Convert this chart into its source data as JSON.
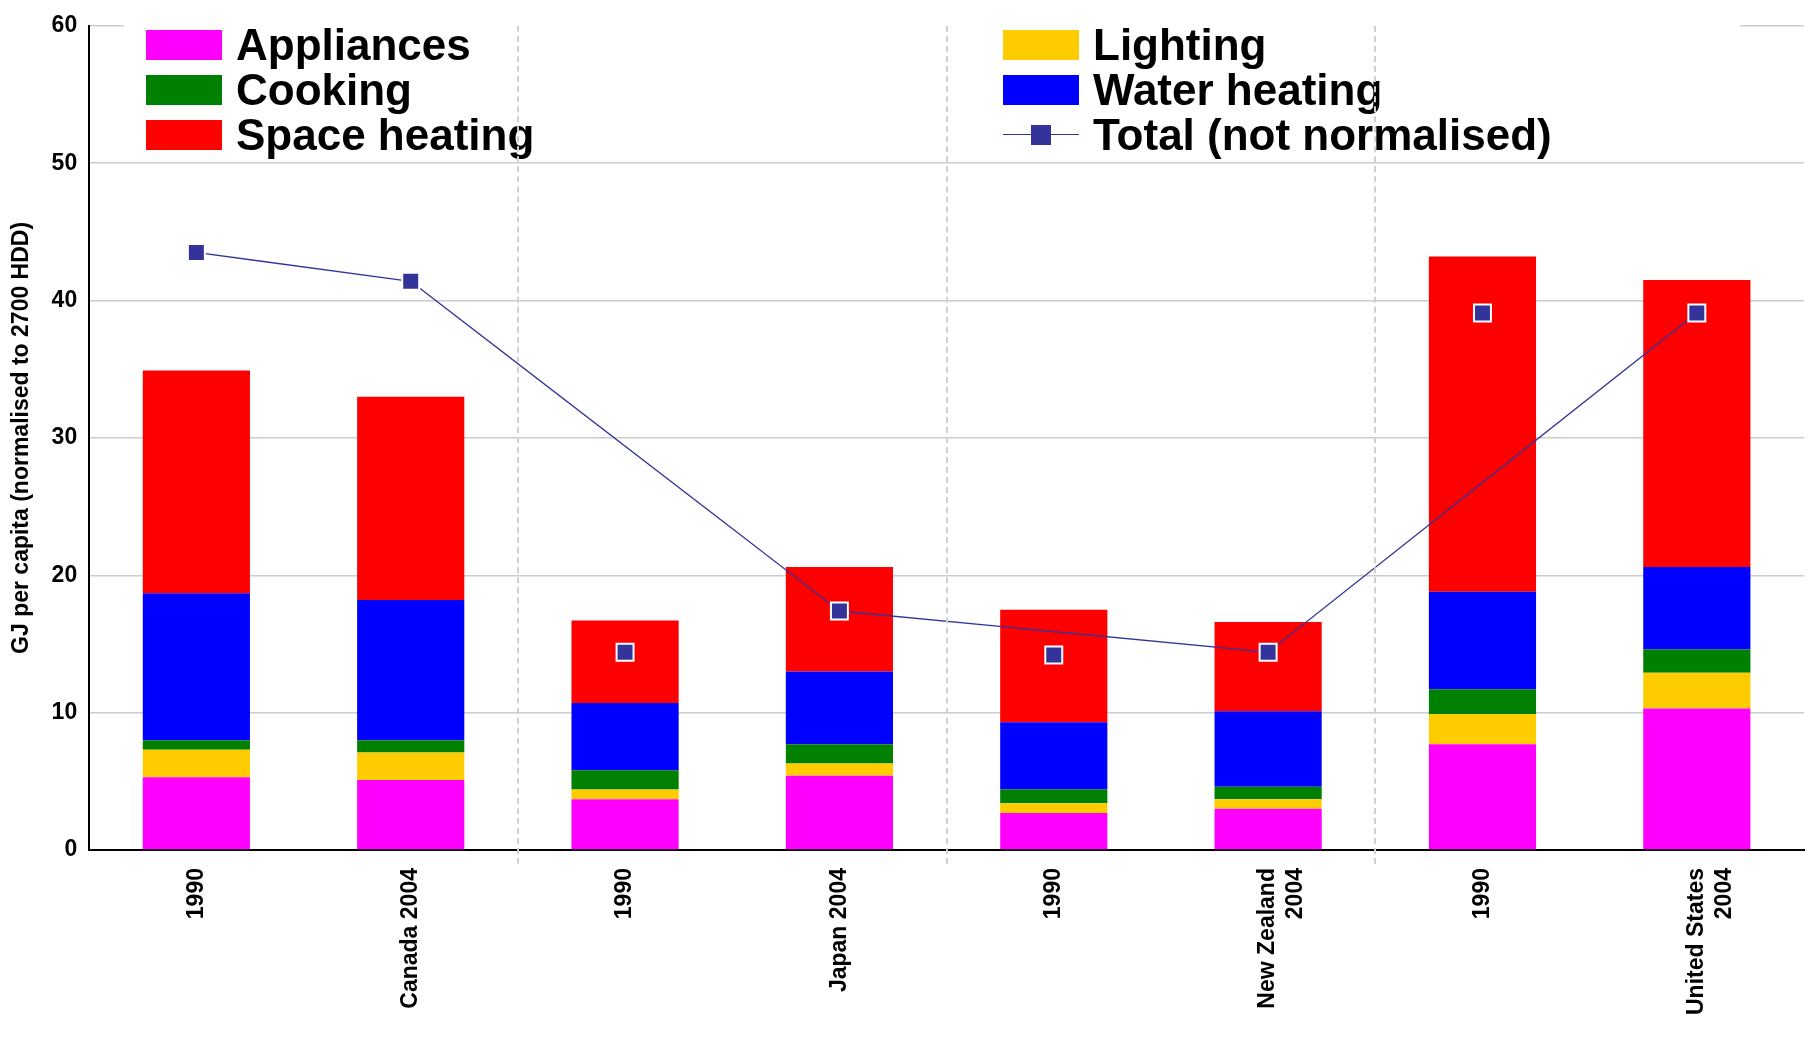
{
  "chart_data": {
    "type": "bar",
    "stacked": true,
    "ylabel": "GJ per capita (normalised to 2700 HDD)",
    "categories": [
      "1990",
      "Canada 2004",
      "1990",
      "Japan 2004",
      "1990",
      "New Zealand 2004",
      "1990",
      "United States 2004"
    ],
    "series": [
      {
        "name": "Appliances",
        "color": "#ff00ff",
        "values": [
          5.3,
          5.1,
          3.7,
          5.4,
          2.7,
          3.0,
          7.7,
          10.3
        ]
      },
      {
        "name": "Lighting",
        "color": "#ffcc00",
        "values": [
          2.0,
          2.0,
          0.7,
          0.9,
          0.7,
          0.7,
          2.2,
          2.6
        ]
      },
      {
        "name": "Cooking",
        "color": "#008000",
        "values": [
          0.7,
          0.9,
          1.4,
          1.4,
          1.0,
          0.9,
          1.8,
          1.7
        ]
      },
      {
        "name": "Water heating",
        "color": "#0000ff",
        "values": [
          10.7,
          10.2,
          4.9,
          5.3,
          4.9,
          5.5,
          7.1,
          6.0
        ]
      },
      {
        "name": "Space heating",
        "color": "#ff0000",
        "values": [
          16.2,
          14.8,
          6.0,
          7.6,
          8.2,
          6.5,
          24.4,
          20.9
        ]
      },
      {
        "name": "Total (not normalised)",
        "type": "line",
        "color": "#333399",
        "marker": "square",
        "values": [
          43.5,
          41.4,
          null,
          17.4,
          null,
          14.4,
          null,
          39.1
        ]
      },
      {
        "type": "scatter",
        "color": "#333399",
        "marker": "square",
        "values": [
          null,
          null,
          14.4,
          null,
          14.2,
          null,
          39.1,
          null
        ]
      }
    ],
    "ylim": [
      0,
      60
    ],
    "yticks": [
      0,
      10,
      20,
      30,
      40,
      50,
      60
    ],
    "grid": "y",
    "legend": "top"
  }
}
